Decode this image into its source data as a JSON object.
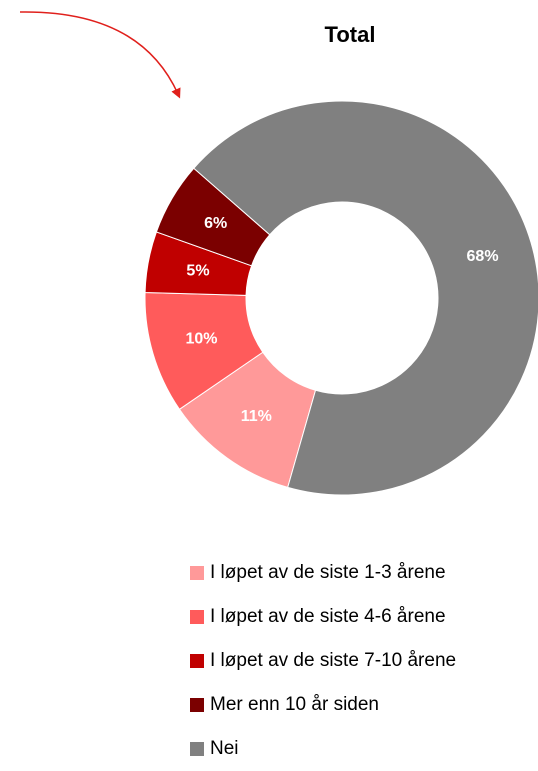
{
  "chart_data": {
    "type": "donut",
    "title": "Total",
    "categories": [
      "I løpet av de siste 1-3 årene",
      "I løpet av de siste 4-6 årene",
      "I løpet av de siste 7-10 årene",
      "Mer enn 10 år siden",
      "Nei"
    ],
    "values": [
      11,
      10,
      5,
      6,
      68
    ],
    "colors": [
      "#ff9999",
      "#ff5b5b",
      "#c00000",
      "#7b0000",
      "#808080"
    ],
    "legend": "bottom"
  }
}
